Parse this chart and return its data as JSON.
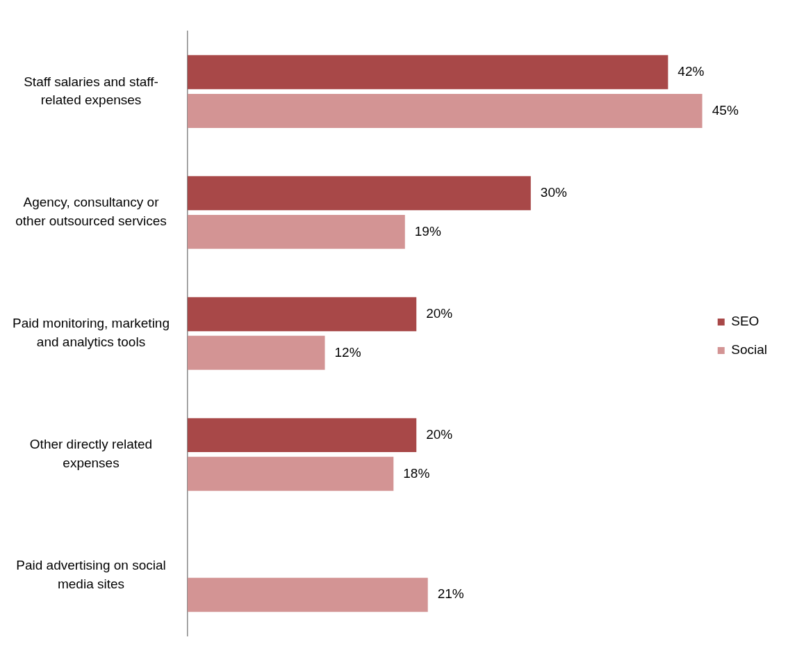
{
  "chart_data": {
    "type": "bar",
    "orientation": "horizontal",
    "categories": [
      "Staff salaries and staff-related expenses",
      "Agency, consultancy or other outsourced services",
      "Paid monitoring, marketing and analytics tools",
      "Other directly related expenses",
      "Paid advertising on social media sites"
    ],
    "series": [
      {
        "name": "SEO",
        "color": "#a84848",
        "values": [
          42,
          30,
          20,
          20,
          null
        ],
        "value_labels": [
          "42%",
          "30%",
          "20%",
          "20%",
          null
        ]
      },
      {
        "name": "Social",
        "color": "#d39494",
        "values": [
          45,
          19,
          12,
          18,
          21
        ],
        "value_labels": [
          "45%",
          "19%",
          "12%",
          "18%",
          "21%"
        ]
      }
    ],
    "legend": "right"
  }
}
